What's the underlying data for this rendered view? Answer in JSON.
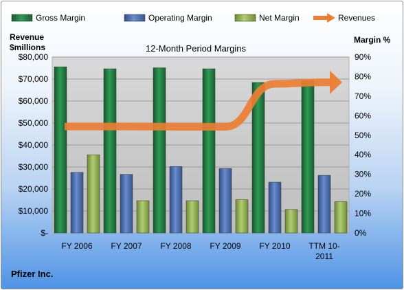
{
  "chart_data": {
    "type": "bar",
    "title": "12-Month Period Margins",
    "company": "Pfizer Inc.",
    "categories": [
      "FY 2006",
      "FY 2007",
      "FY 2008",
      "FY 2009",
      "FY 2010",
      "TTM 10-2011"
    ],
    "series": [
      {
        "name": "Gross Margin",
        "axis": "right",
        "color": "#1f7a3d",
        "values": [
          85,
          84,
          84.5,
          84,
          77,
          78
        ]
      },
      {
        "name": "Operating Margin",
        "axis": "right",
        "color": "#4a6fb5",
        "values": [
          31,
          30,
          34,
          33,
          26,
          29.5
        ]
      },
      {
        "name": "Net Margin",
        "axis": "right",
        "color": "#8fae4c",
        "values": [
          40,
          16.5,
          16.5,
          17,
          12,
          16
        ]
      },
      {
        "name": "Revenues",
        "type": "line",
        "axis": "left",
        "color": "#ed7d31",
        "values": [
          48400,
          48400,
          48300,
          48300,
          67800,
          68500
        ]
      }
    ],
    "left_axis": {
      "label": [
        "Revenue",
        "$millions"
      ],
      "ylim": [
        0,
        80000
      ],
      "ticks": [
        0,
        10000,
        20000,
        30000,
        40000,
        50000,
        60000,
        70000,
        80000
      ],
      "tick_labels": [
        "$-",
        "$10,000",
        "$20,000",
        "$30,000",
        "$40,000",
        "$50,000",
        "$60,000",
        "$70,000",
        "$80,000"
      ]
    },
    "right_axis": {
      "label": "Margin %",
      "ylim": [
        0,
        90
      ],
      "ticks": [
        0,
        10,
        20,
        30,
        40,
        50,
        60,
        70,
        80,
        90
      ],
      "tick_labels": [
        "0%",
        "10%",
        "20%",
        "30%",
        "40%",
        "50%",
        "60%",
        "70%",
        "80%",
        "90%"
      ]
    },
    "category_labels": [
      [
        "FY 2006"
      ],
      [
        "FY 2007"
      ],
      [
        "FY 2008"
      ],
      [
        "FY 2009"
      ],
      [
        "FY 2010"
      ],
      [
        "TTM 10-",
        "2011"
      ]
    ],
    "grid": true,
    "legend": "top"
  }
}
